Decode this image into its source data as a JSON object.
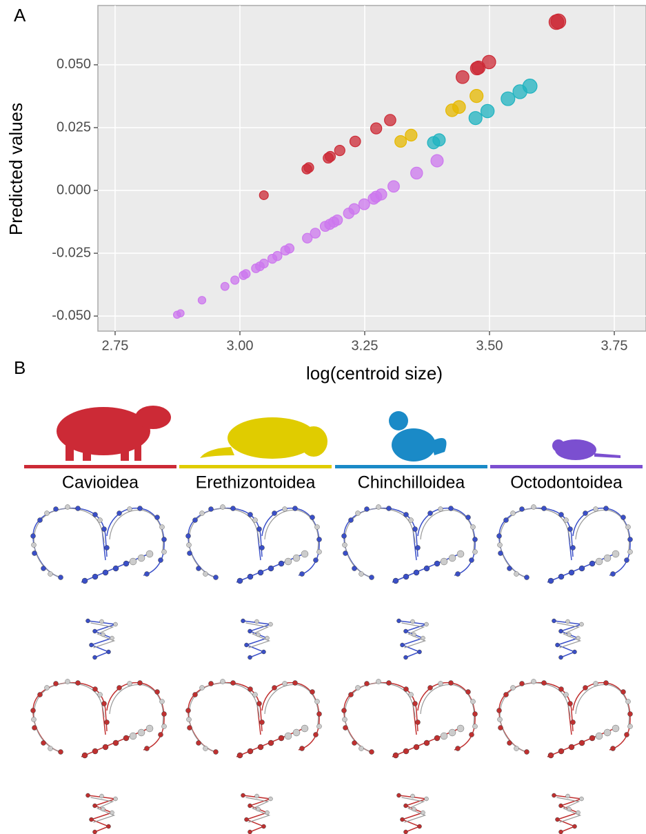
{
  "panel_a": {
    "label": "A"
  },
  "chart_data": {
    "type": "scatter",
    "xlabel": "log(centroid size)",
    "ylabel": "Predicted values",
    "xlim": [
      2.7155,
      3.8135
    ],
    "ylim": [
      -0.056,
      0.0736
    ],
    "xticks": [
      2.75,
      {
        "value": 3.0,
        "label": "3.00"
      },
      3.25,
      {
        "value": 3.5,
        "label": "3.50"
      },
      3.75
    ],
    "yticks": [
      {
        "value": 0.05,
        "label": "0.050"
      },
      {
        "value": 0.025,
        "label": "0.025"
      },
      {
        "value": 0,
        "label": "0.000"
      },
      {
        "value": -0.025,
        "label": "-0.025"
      },
      {
        "value": -0.05,
        "label": "-0.050"
      }
    ],
    "grid": true,
    "series": [
      {
        "color": "#cc2a36",
        "x": [
          3.048,
          3.134,
          3.138,
          3.177,
          3.181,
          3.2,
          3.231,
          3.273,
          3.301,
          3.446,
          3.475,
          3.478,
          3.499,
          3.634,
          3.638
        ],
        "values": [
          -0.0019,
          0.0085,
          0.0091,
          0.0129,
          0.0135,
          0.0159,
          0.0195,
          0.0247,
          0.028,
          0.0451,
          0.0486,
          0.0489,
          0.0511,
          0.067,
          0.0673
        ]
      },
      {
        "color": "#e6b800",
        "x": [
          3.322,
          3.343,
          3.425,
          3.439,
          3.474
        ],
        "values": [
          0.0195,
          0.022,
          0.0319,
          0.0332,
          0.0376
        ]
      },
      {
        "color": "#1fb3c0",
        "x": [
          3.388,
          3.399,
          3.472,
          3.496,
          3.537,
          3.561,
          3.581
        ],
        "values": [
          0.019,
          0.0201,
          0.0288,
          0.0316,
          0.0365,
          0.0393,
          0.0415
        ]
      },
      {
        "color": "#cc77ee",
        "x": [
          2.874,
          2.881,
          2.924,
          2.97,
          2.99,
          3.007,
          3.012,
          3.032,
          3.04,
          3.048,
          3.065,
          3.075,
          3.091,
          3.099,
          3.135,
          3.151,
          3.171,
          3.18,
          3.188,
          3.195,
          3.218,
          3.229,
          3.249,
          3.268,
          3.273,
          3.283,
          3.308,
          3.354,
          3.395
        ],
        "values": [
          -0.0495,
          -0.0489,
          -0.0437,
          -0.0382,
          -0.0357,
          -0.0338,
          -0.0332,
          -0.031,
          -0.0302,
          -0.0291,
          -0.0272,
          -0.0261,
          -0.0239,
          -0.0231,
          -0.019,
          -0.017,
          -0.0143,
          -0.0135,
          -0.0126,
          -0.0118,
          -0.0091,
          -0.0074,
          -0.0055,
          -0.0033,
          -0.0025,
          -0.0016,
          0.0016,
          0.0069,
          0.0118
        ]
      }
    ]
  },
  "panel_b": {
    "label": "B",
    "clades": [
      {
        "name": "Cavioidea",
        "color": "#cc2a36"
      },
      {
        "name": "Erethizontoidea",
        "color": "#e0cc00"
      },
      {
        "name": "Chinchilloidea",
        "color": "#1a8ac7"
      },
      {
        "name": "Octodontoidea",
        "color": "#7b4fd0"
      }
    ]
  }
}
